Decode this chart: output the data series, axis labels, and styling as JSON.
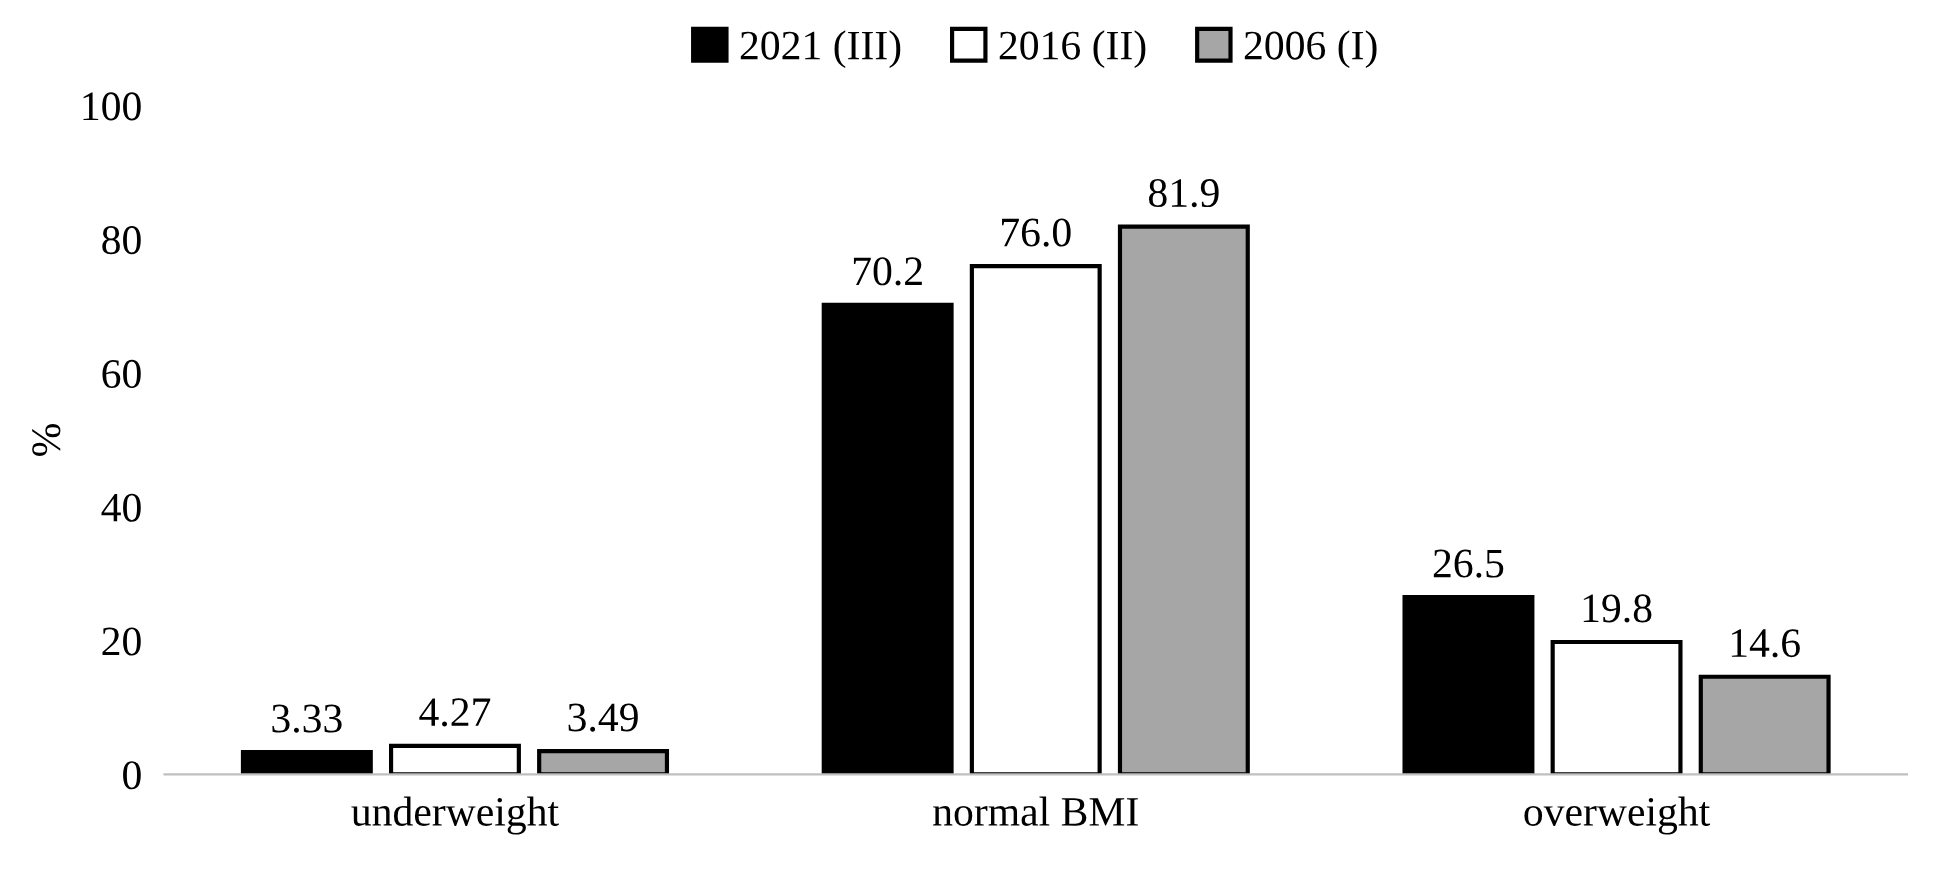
{
  "chart_data": {
    "type": "bar",
    "ylabel": "%",
    "categories": [
      "underweight",
      "normal BMI",
      "overweight"
    ],
    "series": [
      {
        "name": "2021 (III)",
        "color": "#000000",
        "values": [
          3.33,
          70.2,
          26.5
        ],
        "value_labels": [
          "3.33",
          "70.2",
          "26.5"
        ]
      },
      {
        "name": "2016 (II)",
        "color": "#ffffff",
        "values": [
          4.27,
          76.0,
          19.8
        ],
        "value_labels": [
          "4.27",
          "76.0",
          "19.8"
        ]
      },
      {
        "name": "2006 (I)",
        "color": "#a6a6a6",
        "values": [
          3.49,
          81.9,
          14.6
        ],
        "value_labels": [
          "3.49",
          "81.9",
          "14.6"
        ]
      }
    ],
    "ylim": [
      0,
      100
    ],
    "yticks": [
      0,
      20,
      40,
      60,
      80,
      100
    ],
    "grid": false,
    "legend": "top"
  }
}
